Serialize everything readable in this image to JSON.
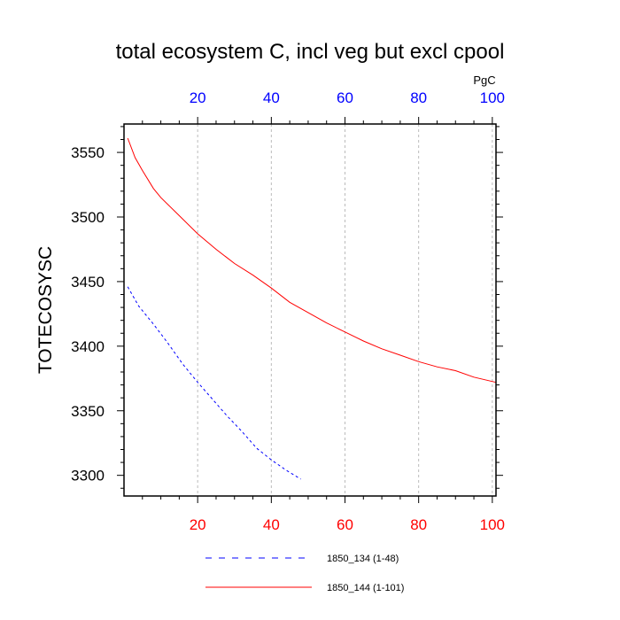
{
  "chart_data": {
    "type": "line",
    "title": "total ecosystem C, incl veg but excl cpool",
    "ylabel": "TOTECOSYSC",
    "xlabel": "",
    "top_axis_unit": "PgC",
    "xlim": [
      0,
      101
    ],
    "ylim": [
      3284,
      3572
    ],
    "xticks": [
      20,
      40,
      60,
      80,
      100
    ],
    "yticks": [
      3300,
      3350,
      3400,
      3450,
      3500,
      3550
    ],
    "grid": "vertical dashed at major x ticks",
    "colors": {
      "bottom_axis": "#ff0000",
      "top_axis": "#0000ff"
    },
    "series": [
      {
        "name": "1850_134 (1-48)",
        "color": "#0000ff",
        "style": "dashed",
        "x": [
          1,
          4,
          8,
          12,
          16,
          20,
          24,
          28,
          32,
          36,
          40,
          44,
          48
        ],
        "y": [
          3446,
          3431,
          3417,
          3402,
          3386,
          3372,
          3359,
          3346,
          3334,
          3321,
          3312,
          3304,
          3297
        ]
      },
      {
        "name": "1850_144 (1-101)",
        "color": "#ff0000",
        "style": "solid",
        "x": [
          1,
          3,
          5,
          8,
          10,
          15,
          20,
          25,
          30,
          35,
          40,
          45,
          50,
          55,
          60,
          65,
          70,
          75,
          80,
          85,
          90,
          95,
          101
        ],
        "y": [
          3561,
          3546,
          3536,
          3522,
          3515,
          3501,
          3487,
          3475,
          3464,
          3455,
          3445,
          3434,
          3426,
          3418,
          3411,
          3404,
          3398,
          3393,
          3388,
          3384,
          3381,
          3376,
          3372
        ]
      }
    ]
  }
}
